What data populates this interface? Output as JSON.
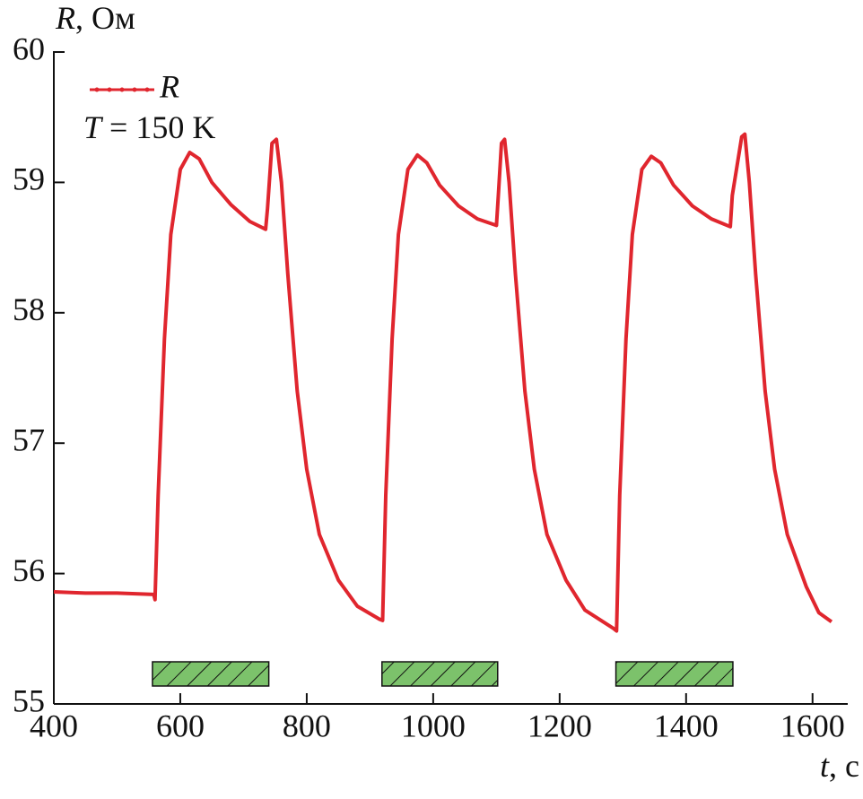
{
  "chart_data": {
    "type": "line",
    "y_label": "R, Ом",
    "x_label": "t, с",
    "annotation": "T = 150 K",
    "xlim": [
      400,
      1650
    ],
    "ylim": [
      55,
      60
    ],
    "xticks": [
      400,
      600,
      800,
      1000,
      1200,
      1400,
      1600
    ],
    "yticks": [
      55,
      56,
      57,
      58,
      59,
      60
    ],
    "grid": false,
    "legend": "upper left",
    "shaded_intervals": [
      [
        556,
        740
      ],
      [
        919,
        1102
      ],
      [
        1289,
        1474
      ]
    ],
    "shaded_color": "#7cc26b",
    "x": [
      400,
      450,
      500,
      558,
      560,
      565,
      575,
      585,
      600,
      615,
      630,
      650,
      680,
      710,
      735,
      738,
      745,
      752,
      760,
      770,
      785,
      800,
      820,
      850,
      880,
      915,
      920,
      925,
      935,
      945,
      960,
      975,
      990,
      1010,
      1040,
      1070,
      1100,
      1103,
      1108,
      1113,
      1120,
      1130,
      1145,
      1160,
      1180,
      1210,
      1240,
      1285,
      1290,
      1295,
      1305,
      1315,
      1330,
      1345,
      1360,
      1380,
      1410,
      1440,
      1470,
      1473,
      1488,
      1493,
      1500,
      1510,
      1525,
      1540,
      1560,
      1590,
      1610,
      1630
    ],
    "series": [
      {
        "name": "R",
        "color": "#e0262e",
        "values": [
          55.86,
          55.85,
          55.85,
          55.84,
          55.8,
          56.6,
          57.8,
          58.6,
          59.1,
          59.23,
          59.18,
          59.0,
          58.83,
          58.7,
          58.64,
          58.8,
          59.3,
          59.33,
          59.0,
          58.3,
          57.4,
          56.8,
          56.3,
          55.95,
          55.75,
          55.65,
          55.64,
          56.6,
          57.8,
          58.6,
          59.1,
          59.21,
          59.15,
          58.98,
          58.82,
          58.72,
          58.67,
          58.9,
          59.3,
          59.33,
          59.0,
          58.3,
          57.4,
          56.8,
          56.3,
          55.95,
          55.72,
          55.58,
          55.56,
          56.6,
          57.8,
          58.6,
          59.1,
          59.2,
          59.15,
          58.98,
          58.82,
          58.72,
          58.66,
          58.9,
          59.35,
          59.37,
          59.0,
          58.3,
          57.4,
          56.8,
          56.3,
          55.9,
          55.7,
          55.63
        ]
      }
    ]
  }
}
